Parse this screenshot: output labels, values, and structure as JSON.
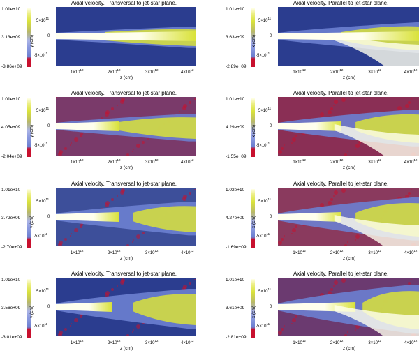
{
  "panels": [
    {
      "title": "Axial velocity. Transversal to jet-star plane.",
      "cb_top": "1.01e+10",
      "cb_mid": "3.13e+09",
      "cb_bot": "-3.86e+09",
      "axis": "y (cm)",
      "style": "a"
    },
    {
      "title": "Axial velocity. Parallel to jet-star plane.",
      "cb_top": "1.01e+10",
      "cb_mid": "3.63e+09",
      "cb_bot": "-2.89e+09",
      "axis": "x (cm)",
      "style": "b"
    },
    {
      "title": "Axial velocity. Transversal to jet-star plane.",
      "cb_top": "1.01e+10",
      "cb_mid": "4.05e+09",
      "cb_bot": "-2.04e+09",
      "axis": "y (cm)",
      "style": "c"
    },
    {
      "title": "Axial velocity. Parallel to jet-star plane.",
      "cb_top": "1.01e+10",
      "cb_mid": "4.29e+09",
      "cb_bot": "-1.55e+09",
      "axis": "x (cm)",
      "style": "d"
    },
    {
      "title": "Axial velocity. Transversal to jet-star plane.",
      "cb_top": "1.01e+10",
      "cb_mid": "3.72e+09",
      "cb_bot": "-2.70e+09",
      "axis": "y (cm)",
      "style": "e"
    },
    {
      "title": "Axial velocity. Parallel to jet-star plane.",
      "cb_top": "1.02e+10",
      "cb_mid": "4.27e+09",
      "cb_bot": "-1.69e+09",
      "axis": "x (cm)",
      "style": "f"
    },
    {
      "title": "Axial velocity. Transversal to jet-star plane.",
      "cb_top": "1.01e+10",
      "cb_mid": "3.56e+09",
      "cb_bot": "-3.01e+09",
      "axis": "y (cm)",
      "style": "g"
    },
    {
      "title": "Axial velocity. Parallel to jet-star plane.",
      "cb_top": "1.01e+10",
      "cb_mid": "3.61e+09",
      "cb_bot": "-2.81e+09",
      "axis": "x (cm)",
      "style": "h"
    }
  ],
  "yticks": {
    "top": "5×10",
    "top_exp": "11",
    "mid": "0",
    "bot": "-5×10",
    "bot_exp": "11"
  },
  "xticks": [
    {
      "mant": "1×10",
      "exp": "12"
    },
    {
      "mant": "2×10",
      "exp": "12"
    },
    {
      "mant": "3×10",
      "exp": "12"
    },
    {
      "mant": "4×10",
      "exp": "12"
    }
  ],
  "xlabel": "z (cm)",
  "colors": {
    "red": "#c8102e",
    "navy": "#2b3d8f",
    "blue": "#6b7fd0",
    "yellow": "#d9e23a",
    "white": "#ffffee"
  }
}
